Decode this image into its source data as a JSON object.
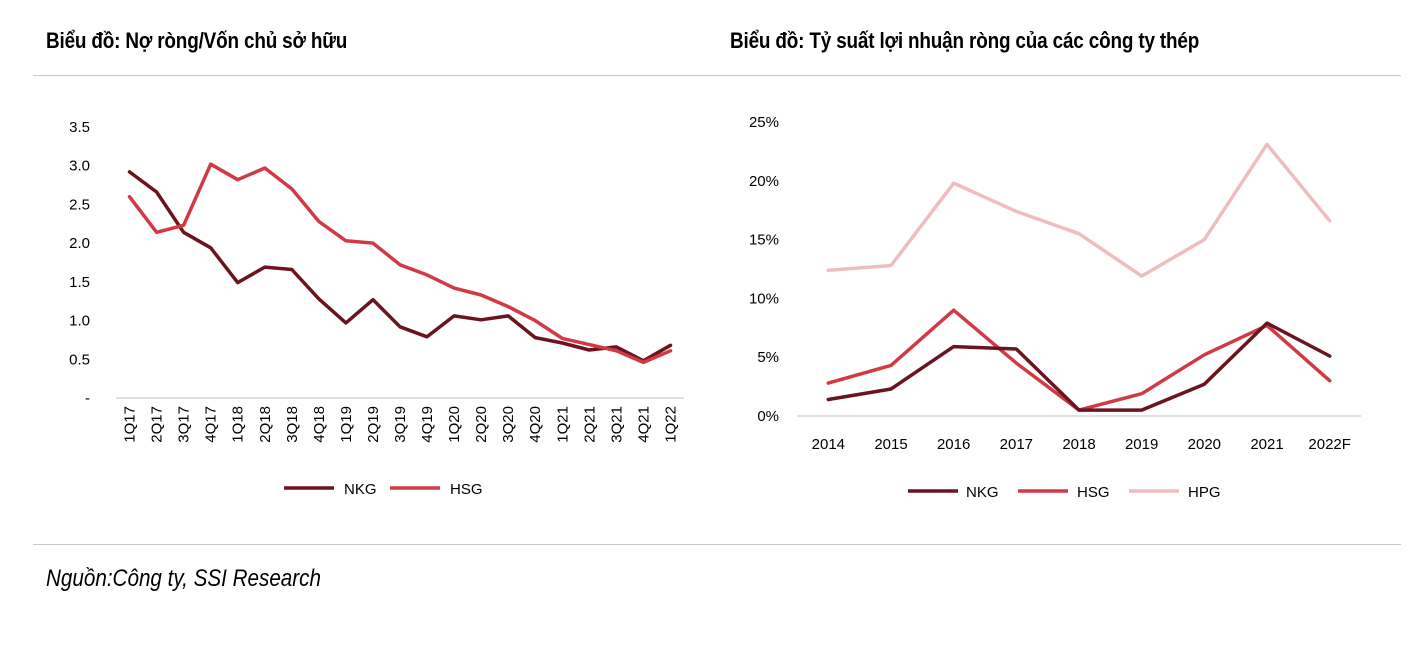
{
  "colors": {
    "NKG": "#6b1420",
    "HSG": "#d13a44",
    "HPG": "#efbcc0"
  },
  "source": "Nguồn:Công ty, SSI Research",
  "chart_data": [
    {
      "type": "line",
      "title": "Biểu đồ: Nợ ròng/Vốn chủ sở hữu",
      "xlabel": "",
      "ylabel": "",
      "categories": [
        "1Q17",
        "2Q17",
        "3Q17",
        "4Q17",
        "1Q18",
        "2Q18",
        "3Q18",
        "4Q18",
        "1Q19",
        "2Q19",
        "3Q19",
        "4Q19",
        "1Q20",
        "2Q20",
        "3Q20",
        "4Q20",
        "1Q21",
        "2Q21",
        "3Q21",
        "4Q21",
        "1Q22"
      ],
      "y_ticks": [
        "3.5",
        "3.0",
        "2.5",
        "2.0",
        "1.5",
        "1.0",
        "0.5",
        "-"
      ],
      "ylim": [
        0,
        3.5
      ],
      "series": [
        {
          "name": "NKG",
          "values": [
            2.92,
            2.66,
            2.14,
            1.94,
            1.49,
            1.69,
            1.66,
            1.28,
            0.97,
            1.27,
            0.92,
            0.79,
            1.06,
            1.01,
            1.06,
            0.78,
            0.71,
            0.62,
            0.66,
            0.48,
            0.68
          ]
        },
        {
          "name": "HSG",
          "values": [
            2.6,
            2.14,
            2.23,
            3.02,
            2.82,
            2.97,
            2.7,
            2.28,
            2.03,
            2.0,
            1.72,
            1.59,
            1.42,
            1.33,
            1.18,
            1.0,
            0.77,
            0.69,
            0.61,
            0.46,
            0.61
          ]
        }
      ]
    },
    {
      "type": "line",
      "title": "Biểu đồ: Tỷ suất lợi nhuận ròng của các công ty thép",
      "xlabel": "",
      "ylabel": "",
      "categories": [
        "2014",
        "2015",
        "2016",
        "2017",
        "2018",
        "2019",
        "2020",
        "2021",
        "2022F"
      ],
      "y_ticks": [
        "25%",
        "20%",
        "15%",
        "10%",
        "5%",
        "0%"
      ],
      "ylim": [
        0,
        25
      ],
      "series": [
        {
          "name": "NKG",
          "values": [
            1.4,
            2.3,
            5.9,
            5.7,
            0.5,
            0.5,
            2.7,
            7.9,
            5.1
          ]
        },
        {
          "name": "HSG",
          "values": [
            2.8,
            4.3,
            9.0,
            4.5,
            0.5,
            1.9,
            5.2,
            7.7,
            3.0
          ]
        },
        {
          "name": "HPG",
          "values": [
            12.4,
            12.8,
            19.8,
            17.4,
            15.5,
            11.9,
            15.0,
            23.1,
            16.6
          ]
        }
      ]
    }
  ]
}
